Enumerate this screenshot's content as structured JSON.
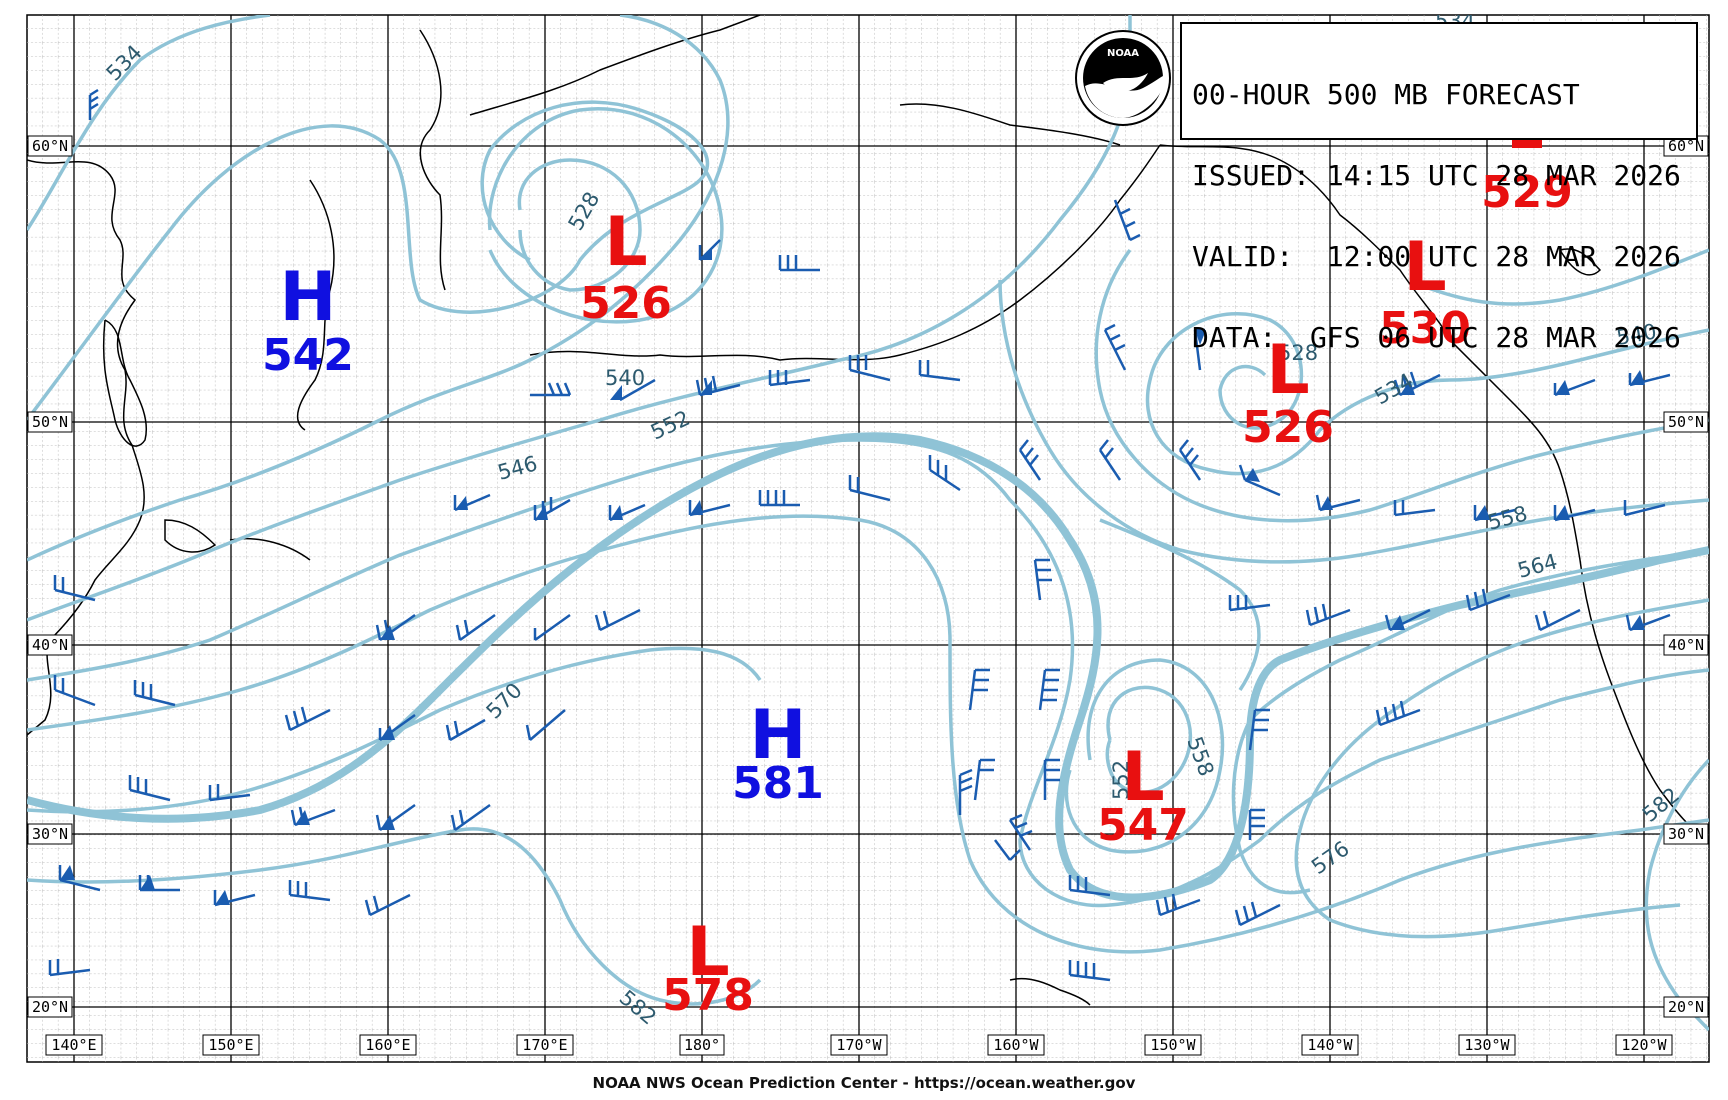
{
  "header": {
    "line1": "00-HOUR 500 MB FORECAST",
    "line2": "ISSUED: 14:15 UTC 28 MAR 2026",
    "line3": "VALID:  12:00 UTC 28 MAR 2026",
    "line4": "DATA:  GFS 06 UTC 28 MAR 2026"
  },
  "logo": {
    "text": "NOAA",
    "icon": "noaa-logo"
  },
  "footer": "NOAA NWS Ocean Prediction Center - https://ocean.weather.gov",
  "latitude_labels": [
    "60°N",
    "50°N",
    "40°N",
    "30°N",
    "20°N"
  ],
  "longitude_labels": [
    "140°E",
    "150°E",
    "160°E",
    "170°E",
    "180°",
    "170°W",
    "160°W",
    "150°W",
    "140°W",
    "130°W",
    "120°W"
  ],
  "pressure_systems": [
    {
      "type": "H",
      "value": "542",
      "color": "#1010e0"
    },
    {
      "type": "L",
      "value": "526",
      "color": "#e81010"
    },
    {
      "type": "L",
      "value": "526",
      "color": "#e81010"
    },
    {
      "type": "L",
      "value": "530",
      "color": "#e81010"
    },
    {
      "type": "L",
      "value": "529",
      "color": "#e81010"
    },
    {
      "type": "H",
      "value": "581",
      "color": "#1010e0"
    },
    {
      "type": "L",
      "value": "547",
      "color": "#e81010"
    },
    {
      "type": "L",
      "value": "578",
      "color": "#e81010"
    }
  ],
  "contour_labels": [
    "534",
    "528",
    "540",
    "552",
    "546",
    "570",
    "528",
    "534",
    "540",
    "558",
    "564",
    "558",
    "552",
    "576",
    "582",
    "582",
    "534"
  ],
  "colors": {
    "contour": "#8fc3d6",
    "contour_label": "#2d5a6e",
    "wind_barb": "#1a5cb0",
    "high": "#1010e0",
    "low": "#e81010",
    "grid_major": "#000000",
    "grid_minor": "#bdbdbd"
  }
}
